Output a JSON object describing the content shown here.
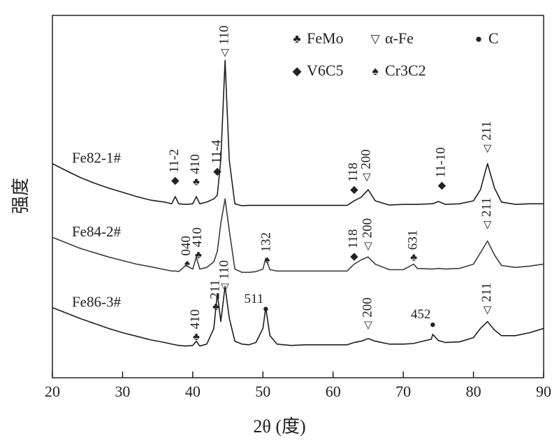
{
  "chart_data": {
    "type": "line",
    "x_label": "2θ (度)",
    "y_label": "强度",
    "x": [
      20,
      22,
      24,
      26,
      28,
      30,
      32,
      34,
      36,
      37,
      37.5,
      38,
      39,
      40,
      40.5,
      41,
      42,
      43,
      43.5,
      44,
      44.6,
      45.2,
      46,
      47,
      48,
      49,
      50,
      50.4,
      51,
      52,
      54,
      56,
      58,
      60,
      62,
      63,
      64,
      65,
      66,
      68,
      70,
      71.5,
      72,
      74,
      74.2,
      75,
      76,
      78,
      80,
      81,
      82,
      83,
      84,
      86,
      88,
      90
    ],
    "series": [
      {
        "name": "Fe82-1#",
        "color": "#1e1e1e",
        "values": [
          65.6,
          63.4,
          61.3,
          59.6,
          58.1,
          56.8,
          55.5,
          54.4,
          53.8,
          53.3,
          55.5,
          53.3,
          53.1,
          53.3,
          55.5,
          53.3,
          53.8,
          54.8,
          55.9,
          66.7,
          97.2,
          66.7,
          53.3,
          52.7,
          52.8,
          52.8,
          52.8,
          52.8,
          52.8,
          52.8,
          52.8,
          52.8,
          52.8,
          52.8,
          52.8,
          54.2,
          55.3,
          57.6,
          54.2,
          52.9,
          53.1,
          53.1,
          53.1,
          53.3,
          53.3,
          54.0,
          53.1,
          53.3,
          54.2,
          57.6,
          65.6,
          58.1,
          53.8,
          53.1,
          53.3,
          53.3
        ]
      },
      {
        "name": "Fe84-2#",
        "color": "#3c3c3c",
        "values": [
          43.0,
          41.3,
          39.6,
          38.3,
          37.0,
          35.9,
          34.8,
          34.0,
          33.1,
          32.7,
          32.7,
          32.5,
          34.4,
          33.3,
          37.0,
          33.3,
          33.8,
          35.5,
          38.7,
          47.3,
          54.8,
          45.2,
          33.3,
          32.3,
          32.3,
          32.5,
          33.3,
          36.6,
          33.1,
          32.7,
          32.7,
          32.7,
          32.7,
          32.7,
          32.7,
          34.8,
          36.1,
          37.0,
          34.8,
          33.1,
          33.1,
          34.8,
          33.5,
          33.3,
          33.3,
          33.5,
          33.3,
          33.5,
          34.8,
          38.3,
          41.9,
          37.6,
          34.4,
          33.8,
          34.2,
          34.8
        ]
      },
      {
        "name": "Fe86-3#",
        "color": "#1e1e1e",
        "values": [
          21.5,
          19.8,
          18.1,
          16.6,
          15.1,
          13.8,
          12.7,
          11.6,
          10.8,
          10.3,
          10.1,
          9.9,
          9.7,
          9.9,
          11.2,
          9.7,
          10.3,
          15.1,
          25.8,
          17.2,
          28.0,
          18.3,
          11.2,
          10.3,
          10.1,
          10.8,
          15.1,
          21.5,
          12.9,
          10.3,
          9.9,
          10.1,
          10.1,
          10.1,
          10.1,
          10.8,
          11.2,
          12.0,
          11.2,
          10.3,
          10.3,
          10.5,
          10.8,
          11.8,
          13.3,
          11.4,
          10.8,
          11.0,
          12.3,
          15.1,
          17.2,
          14.6,
          12.9,
          12.9,
          13.8,
          15.1
        ]
      }
    ],
    "xlim": [
      20,
      90
    ],
    "xticks": [
      20,
      30,
      40,
      50,
      60,
      70,
      80,
      90
    ],
    "ylim": [
      0,
      111
    ],
    "legend": [
      {
        "symbol": "♣",
        "label": "FeMo"
      },
      {
        "symbol": "▽",
        "label": "α-Fe"
      },
      {
        "symbol": "●",
        "label": "C"
      },
      {
        "symbol": "◆",
        "label": "V6C5"
      },
      {
        "symbol": "♠",
        "label": "Cr3C2"
      }
    ],
    "annotations": [
      {
        "text": "11-2",
        "symbol": "◆",
        "x": 37.5,
        "y": 60.2,
        "orientation": "vertical"
      },
      {
        "text": "410",
        "symbol": "♣",
        "x": 40.5,
        "y": 59.8,
        "orientation": "vertical"
      },
      {
        "text": "11-4",
        "symbol": "◆",
        "x": 43.5,
        "y": 63.0,
        "orientation": "vertical"
      },
      {
        "text": "110",
        "symbol": "▽",
        "x": 44.6,
        "y": 99.4,
        "orientation": "vertical"
      },
      {
        "text": "118",
        "symbol": "◆",
        "x": 63,
        "y": 57.4,
        "orientation": "vertical"
      },
      {
        "text": "200",
        "symbol": "▽",
        "x": 64.8,
        "y": 61.3,
        "orientation": "vertical"
      },
      {
        "text": "11-10",
        "symbol": "◆",
        "x": 75.5,
        "y": 58.7,
        "orientation": "vertical"
      },
      {
        "text": "211",
        "symbol": "▽",
        "x": 82,
        "y": 70.1,
        "orientation": "vertical"
      },
      {
        "text": "040",
        "symbol": "♠",
        "x": 39.2,
        "y": 34.8,
        "orientation": "vertical"
      },
      {
        "text": "410",
        "symbol": "♣",
        "x": 40.8,
        "y": 37.4,
        "orientation": "vertical"
      },
      {
        "text": "132",
        "symbol": "♠",
        "x": 50.6,
        "y": 35.9,
        "orientation": "vertical"
      },
      {
        "text": "118",
        "symbol": "◆",
        "x": 63,
        "y": 37.0,
        "orientation": "vertical"
      },
      {
        "text": "200",
        "symbol": "▽",
        "x": 65,
        "y": 40.2,
        "orientation": "vertical"
      },
      {
        "text": "631",
        "symbol": "♣",
        "x": 71.5,
        "y": 36.6,
        "orientation": "vertical"
      },
      {
        "text": "211",
        "symbol": "▽",
        "x": 82,
        "y": 46.7,
        "orientation": "vertical"
      },
      {
        "text": "410",
        "symbol": "♣",
        "x": 40.5,
        "y": 12.3,
        "orientation": "vertical"
      },
      {
        "text": "211",
        "symbol": "♣",
        "x": 43.3,
        "y": 21.5,
        "orientation": "vertical"
      },
      {
        "text": "110",
        "symbol": "▽",
        "x": 44.6,
        "y": 27.5,
        "orientation": "vertical"
      },
      {
        "text": "511",
        "symbol": "●",
        "x": 50.4,
        "y": 20.9,
        "orientation": "horizontal"
      },
      {
        "text": "200",
        "symbol": "▽",
        "x": 65,
        "y": 15.9,
        "orientation": "vertical"
      },
      {
        "text": "452",
        "symbol": "●",
        "x": 74.2,
        "y": 16.1,
        "orientation": "horizontal"
      },
      {
        "text": "211",
        "symbol": "▽",
        "x": 82,
        "y": 20.6,
        "orientation": "vertical"
      }
    ]
  }
}
